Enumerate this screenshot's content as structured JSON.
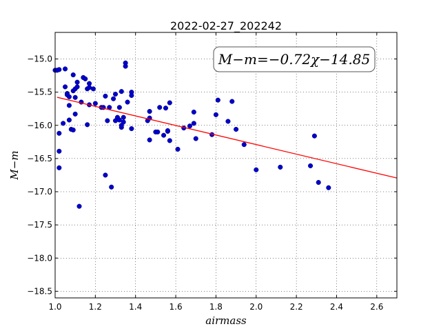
{
  "chart_data": {
    "type": "scatter",
    "title": "2022-02-27_202242",
    "xlabel": "airmass",
    "ylabel": "M−m",
    "xlim": [
      1.0,
      2.7
    ],
    "ylim": [
      -18.6,
      -14.6
    ],
    "x_ticks": [
      1.0,
      1.2,
      1.4,
      1.6,
      1.8,
      2.0,
      2.2,
      2.4,
      2.6
    ],
    "x_tick_labels": [
      "1.0",
      "1.2",
      "1.4",
      "1.6",
      "1.8",
      "2.0",
      "2.2",
      "2.4",
      "2.6"
    ],
    "y_ticks": [
      -15.0,
      -15.5,
      -16.0,
      -16.5,
      -17.0,
      -17.5,
      -18.0,
      -18.5
    ],
    "y_tick_labels": [
      "−15.0",
      "−15.5",
      "−16.0",
      "−16.5",
      "−17.0",
      "−17.5",
      "−18.0",
      "−18.5"
    ],
    "grid": true,
    "annotation": "M−m=−0.72χ−14.85",
    "fit": {
      "slope": -0.72,
      "intercept": -14.85,
      "color": "#ff0000"
    },
    "point_color": "#0000cc",
    "points": [
      [
        1.0,
        -15.17
      ],
      [
        1.01,
        -15.17
      ],
      [
        1.02,
        -15.16
      ],
      [
        1.02,
        -16.12
      ],
      [
        1.02,
        -16.39
      ],
      [
        1.02,
        -16.64
      ],
      [
        1.04,
        -15.97
      ],
      [
        1.05,
        -15.42
      ],
      [
        1.05,
        -15.15
      ],
      [
        1.06,
        -15.52
      ],
      [
        1.06,
        -15.54
      ],
      [
        1.07,
        -15.57
      ],
      [
        1.07,
        -15.7
      ],
      [
        1.07,
        -15.92
      ],
      [
        1.08,
        -16.06
      ],
      [
        1.09,
        -16.07
      ],
      [
        1.09,
        -15.48
      ],
      [
        1.09,
        -15.24
      ],
      [
        1.1,
        -15.58
      ],
      [
        1.1,
        -15.45
      ],
      [
        1.1,
        -15.83
      ],
      [
        1.11,
        -15.42
      ],
      [
        1.11,
        -15.35
      ],
      [
        1.12,
        -17.22
      ],
      [
        1.13,
        -15.65
      ],
      [
        1.14,
        -15.28
      ],
      [
        1.15,
        -15.3
      ],
      [
        1.16,
        -15.45
      ],
      [
        1.16,
        -15.99
      ],
      [
        1.17,
        -15.43
      ],
      [
        1.17,
        -15.37
      ],
      [
        1.17,
        -15.69
      ],
      [
        1.19,
        -15.45
      ],
      [
        1.2,
        -15.67
      ],
      [
        1.23,
        -15.73
      ],
      [
        1.24,
        -15.73
      ],
      [
        1.25,
        -15.56
      ],
      [
        1.25,
        -16.75
      ],
      [
        1.26,
        -15.93
      ],
      [
        1.27,
        -15.73
      ],
      [
        1.28,
        -16.93
      ],
      [
        1.29,
        -15.6
      ],
      [
        1.3,
        -15.93
      ],
      [
        1.3,
        -15.53
      ],
      [
        1.31,
        -15.88
      ],
      [
        1.32,
        -15.92
      ],
      [
        1.32,
        -15.73
      ],
      [
        1.33,
        -15.49
      ],
      [
        1.33,
        -16.03
      ],
      [
        1.33,
        -16.0
      ],
      [
        1.34,
        -15.95
      ],
      [
        1.34,
        -15.88
      ],
      [
        1.35,
        -15.06
      ],
      [
        1.35,
        -15.11
      ],
      [
        1.36,
        -15.65
      ],
      [
        1.38,
        -16.05
      ],
      [
        1.38,
        -15.5
      ],
      [
        1.38,
        -15.55
      ],
      [
        1.46,
        -15.93
      ],
      [
        1.47,
        -15.89
      ],
      [
        1.47,
        -15.79
      ],
      [
        1.47,
        -16.22
      ],
      [
        1.5,
        -16.1
      ],
      [
        1.51,
        -16.1
      ],
      [
        1.52,
        -15.73
      ],
      [
        1.54,
        -16.15
      ],
      [
        1.55,
        -15.74
      ],
      [
        1.56,
        -16.09
      ],
      [
        1.56,
        -16.08
      ],
      [
        1.57,
        -15.66
      ],
      [
        1.57,
        -16.23
      ],
      [
        1.61,
        -16.36
      ],
      [
        1.64,
        -16.04
      ],
      [
        1.67,
        -16.01
      ],
      [
        1.69,
        -15.8
      ],
      [
        1.69,
        -15.97
      ],
      [
        1.7,
        -16.2
      ],
      [
        1.78,
        -16.14
      ],
      [
        1.8,
        -15.84
      ],
      [
        1.81,
        -15.62
      ],
      [
        1.86,
        -15.94
      ],
      [
        1.88,
        -15.64
      ],
      [
        1.9,
        -16.06
      ],
      [
        1.94,
        -16.29
      ],
      [
        2.0,
        -16.67
      ],
      [
        2.12,
        -16.63
      ],
      [
        2.27,
        -16.61
      ],
      [
        2.29,
        -16.16
      ],
      [
        2.31,
        -16.86
      ],
      [
        2.36,
        -16.94
      ]
    ]
  }
}
